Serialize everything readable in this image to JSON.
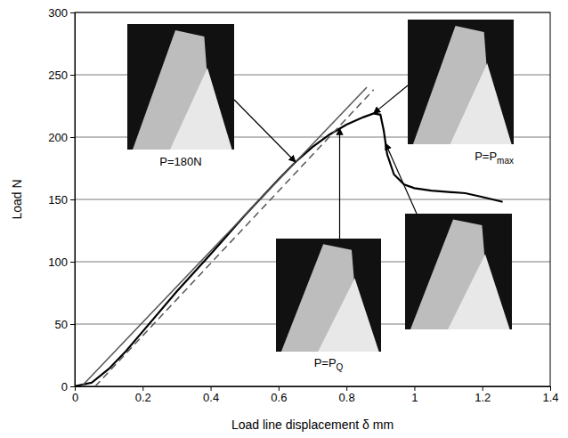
{
  "chart_data": {
    "type": "line",
    "x_label": "Load line displacement δ mm",
    "y_label": "Load N",
    "xlim": [
      0,
      1.4
    ],
    "xticks": [
      0,
      0.2,
      0.4,
      0.6,
      0.8,
      1,
      1.2,
      1.4
    ],
    "ylim": [
      0,
      300
    ],
    "yticks": [
      0,
      50,
      100,
      150,
      200,
      250,
      300
    ],
    "grid": "y",
    "series": [
      {
        "x": [
          0,
          0.05,
          0.1,
          0.15,
          0.2,
          0.3,
          0.4,
          0.5,
          0.6,
          0.65,
          0.7,
          0.75,
          0.8,
          0.85,
          0.88,
          0.9,
          0.91,
          0.92,
          0.94,
          0.97,
          1.0,
          1.05,
          1.1,
          1.15,
          1.2,
          1.26
        ],
        "values": [
          0,
          3,
          14,
          28,
          44,
          76,
          106,
          137,
          166,
          180,
          192,
          202,
          210,
          216,
          219,
          218,
          205,
          186,
          170,
          162,
          159,
          157,
          156,
          155,
          152,
          148
        ],
        "color": "#000000",
        "line_style": "solid"
      },
      {
        "x": [
          0.02,
          0.86
        ],
        "values": [
          0,
          240
        ],
        "color": "#555555",
        "line_style": "solid"
      },
      {
        "x": [
          0.06,
          0.88
        ],
        "values": [
          0,
          238
        ],
        "color": "#555555",
        "line_style": "dashed"
      }
    ],
    "annotations": [
      {
        "label": "P=180N",
        "x": 0.65,
        "y": 180
      },
      {
        "label": "P=P",
        "subscript": "max",
        "x": 0.88,
        "y": 219
      },
      {
        "label": "P=P",
        "subscript": "Q",
        "x": 0.78,
        "y": 207
      },
      {
        "x": 0.915,
        "y": 195
      }
    ]
  }
}
